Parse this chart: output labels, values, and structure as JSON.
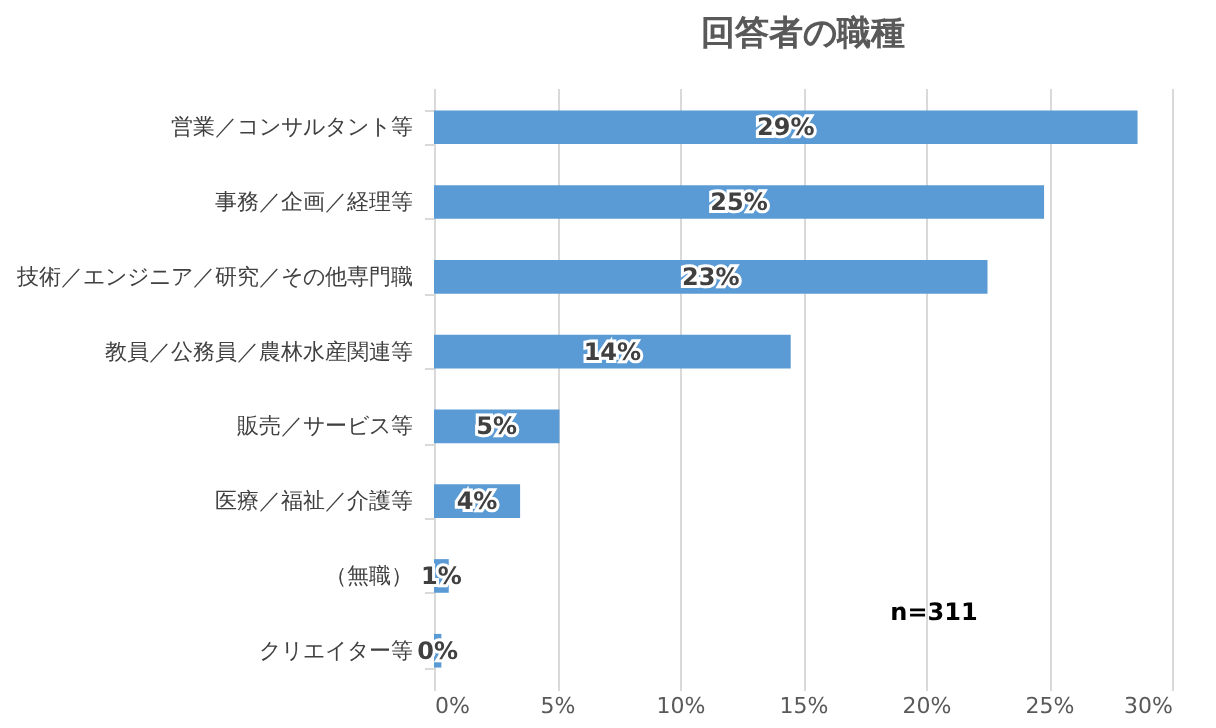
{
  "chart_data": {
    "type": "bar",
    "orientation": "horizontal",
    "title": "回答者の職種",
    "categories": [
      "営業／コンサルタント等",
      "事務／企画／経理等",
      "技術／エンジニア／研究／その他専門職",
      "教員／公務員／農林水産関連等",
      "販売／サービス等",
      "医療／福祉／介護等",
      "（無職）",
      "クリエイター等"
    ],
    "values": [
      28.6,
      24.8,
      22.5,
      14.5,
      5.1,
      3.5,
      0.6,
      0.3
    ],
    "value_labels": [
      "29%",
      "25%",
      "23%",
      "14%",
      "5%",
      "4%",
      "1%",
      "0%"
    ],
    "color": "#5b9bd5",
    "xlim": [
      0,
      30
    ],
    "xticks": [
      {
        "value": 0,
        "label": "0%"
      },
      {
        "value": 5,
        "label": "5%"
      },
      {
        "value": 10,
        "label": "10%"
      },
      {
        "value": 15,
        "label": "15%"
      },
      {
        "value": 20,
        "label": "20%"
      },
      {
        "value": 25,
        "label": "25%"
      },
      {
        "value": 30,
        "label": "30%"
      }
    ],
    "grid": "x",
    "annotations": [
      "n=311"
    ]
  }
}
